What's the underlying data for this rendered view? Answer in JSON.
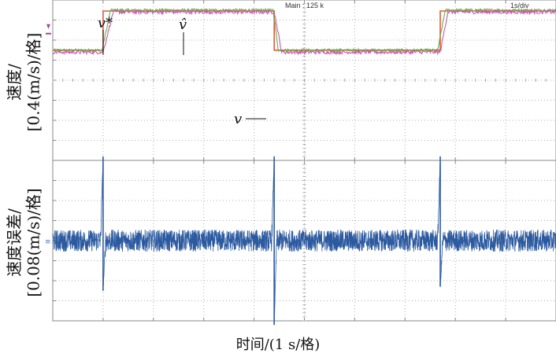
{
  "header": {
    "timebase": "Main : 125 k",
    "time_per_div": "1s/div"
  },
  "xlabel": "时间/(1 s/格)",
  "chart_data": [
    {
      "type": "line",
      "panel": "top",
      "ylabel_line1": "速度/",
      "ylabel_line2": "[0.4(m/s)/格]",
      "annotations": {
        "reference": "v*",
        "estimate": "v̂",
        "actual": "v"
      },
      "x_div": [
        0,
        10
      ],
      "y_div": [
        0,
        8
      ],
      "series": [
        {
          "name": "v*",
          "color": "#e05a3a",
          "x": [
            0,
            1.0,
            1.0,
            4.4,
            4.4,
            7.7,
            7.7,
            10
          ],
          "y": [
            5.5,
            5.5,
            7.45,
            7.45,
            5.5,
            5.5,
            7.45,
            7.45
          ]
        },
        {
          "name": "v̂",
          "color": "#63b04a",
          "x": [
            0,
            0.98,
            1.15,
            4.38,
            4.48,
            7.65,
            7.8,
            10
          ],
          "y": [
            5.5,
            5.5,
            7.5,
            7.5,
            5.5,
            5.5,
            7.5,
            7.5
          ]
        },
        {
          "name": "v",
          "color": "#c85aa8",
          "x": [
            0,
            1.0,
            1.2,
            4.4,
            4.55,
            7.7,
            7.85,
            10
          ],
          "y": [
            5.4,
            5.4,
            7.4,
            7.4,
            5.4,
            5.4,
            7.4,
            7.4
          ]
        }
      ]
    },
    {
      "type": "line",
      "panel": "bottom",
      "ylabel_line1": "速度误差/",
      "ylabel_line2": "[0.08(m/s)/格]",
      "x_div": [
        0,
        10
      ],
      "y_div": [
        -4,
        4
      ],
      "series": [
        {
          "name": "",
          "color": "#2c5aa0",
          "baseline": 0,
          "noise_amplitude": 0.55,
          "spikes": [
            {
              "x": 1.0,
              "peak": 4.2,
              "trough": -2.5
            },
            {
              "x": 4.4,
              "peak": 4.2,
              "trough": -4.2
            },
            {
              "x": 7.7,
              "peak": 4.2,
              "trough": -2.3
            }
          ]
        }
      ]
    }
  ]
}
